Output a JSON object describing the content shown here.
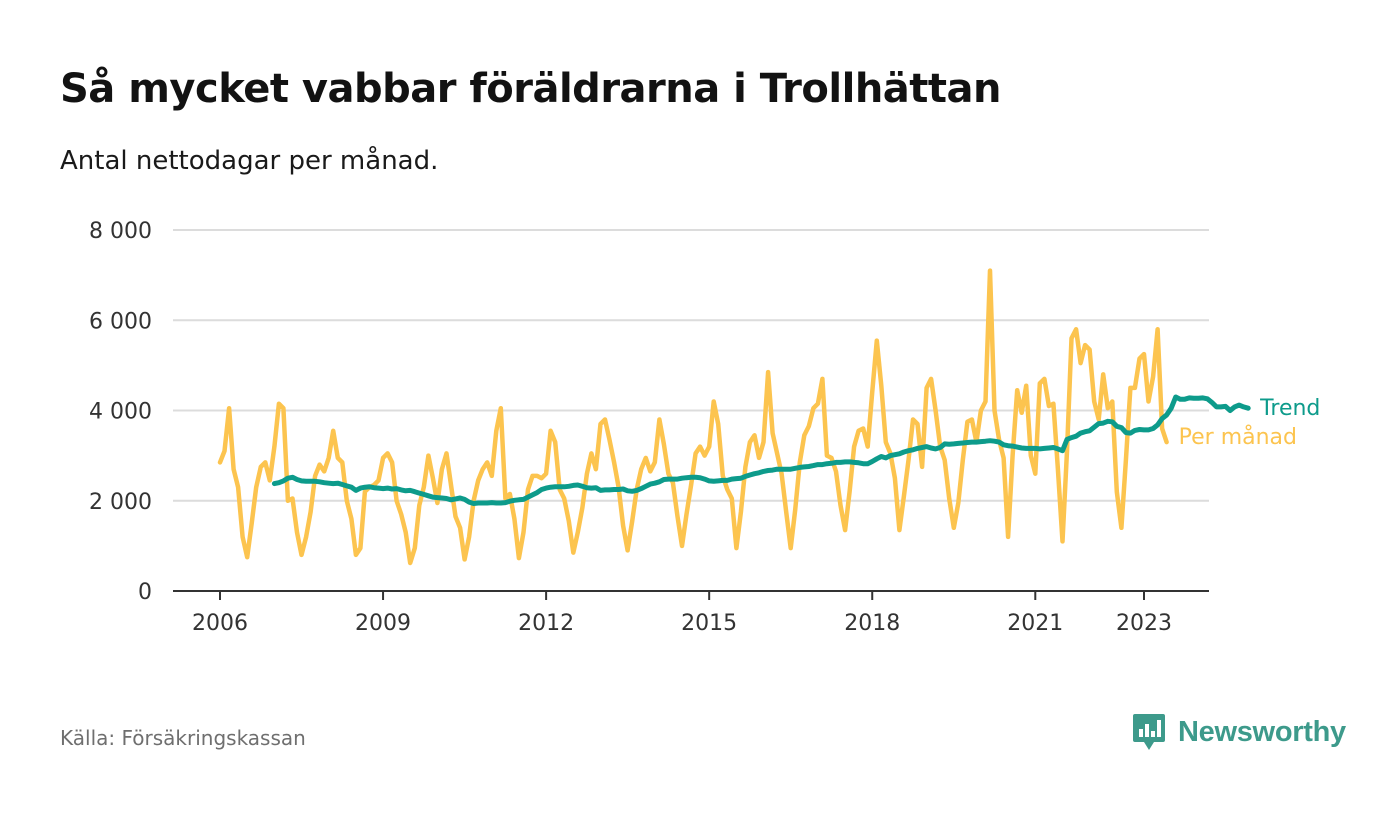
{
  "header": {
    "title": "Så mycket vabbar föräldrarna i Trollhättan",
    "subtitle": "Antal nettodagar per månad."
  },
  "footer": {
    "source": "Källa: Försäkringskassan",
    "brand": "Newsworthy",
    "brand_icon": "bar-chart-speech-icon"
  },
  "colors": {
    "monthly": "#fcc44f",
    "trend": "#0d9b8b",
    "grid": "#dcdcdc",
    "axis": "#333333",
    "brand": "#3d9a8b"
  },
  "chart_data": {
    "type": "line",
    "grid": true,
    "x_unit": "date (year-month)",
    "xlim": [
      "2005-03",
      "2024-02"
    ],
    "ylim": [
      0,
      8000
    ],
    "y_ticks": [
      0,
      2000,
      4000,
      6000,
      8000
    ],
    "y_tick_labels": [
      "0",
      "2 000",
      "4 000",
      "6 000",
      "8 000"
    ],
    "x_ticks": [
      "2006-01",
      "2009-01",
      "2012-01",
      "2015-01",
      "2018-01",
      "2021-01",
      "2023-01"
    ],
    "x_tick_labels": [
      "2006",
      "2009",
      "2012",
      "2015",
      "2018",
      "2021",
      "2023"
    ],
    "series": [
      {
        "name": "Per månad",
        "color": "#fcc44f",
        "start": "2006-01",
        "step": "month",
        "values": [
          2850,
          3100,
          4050,
          2700,
          2300,
          1200,
          750,
          1500,
          2300,
          2750,
          2850,
          2450,
          3200,
          4150,
          4050,
          2000,
          2050,
          1300,
          800,
          1200,
          1750,
          2550,
          2800,
          2650,
          2950,
          3550,
          2950,
          2850,
          2000,
          1600,
          800,
          950,
          2200,
          2300,
          2350,
          2450,
          2950,
          3050,
          2850,
          2000,
          1700,
          1300,
          620,
          950,
          1900,
          2300,
          3000,
          2500,
          1950,
          2700,
          3050,
          2350,
          1650,
          1400,
          700,
          1200,
          2000,
          2450,
          2700,
          2850,
          2550,
          3550,
          4050,
          2050,
          2150,
          1600,
          730,
          1300,
          2250,
          2550,
          2550,
          2500,
          2600,
          3550,
          3300,
          2250,
          2050,
          1550,
          850,
          1300,
          1850,
          2600,
          3050,
          2700,
          3700,
          3800,
          3350,
          2850,
          2300,
          1450,
          900,
          1550,
          2250,
          2700,
          2950,
          2650,
          2850,
          3800,
          3250,
          2600,
          2400,
          1650,
          1000,
          1700,
          2350,
          3050,
          3200,
          3000,
          3200,
          4200,
          3700,
          2550,
          2250,
          2050,
          950,
          1750,
          2750,
          3300,
          3450,
          2950,
          3300,
          4850,
          3500,
          3050,
          2600,
          1750,
          950,
          1800,
          2850,
          3450,
          3650,
          4050,
          4150,
          4700,
          3000,
          2950,
          2650,
          1900,
          1350,
          2200,
          3200,
          3550,
          3600,
          3200,
          4400,
          5550,
          4550,
          3300,
          3050,
          2500,
          1350,
          2100,
          2900,
          3800,
          3700,
          2750,
          4500,
          4700,
          4000,
          3200,
          2900,
          2050,
          1400,
          1950,
          2900,
          3750,
          3800,
          3300,
          4000,
          4200,
          7100,
          4000,
          3350,
          2950,
          1200,
          3000,
          4450,
          3950,
          4550,
          3000,
          2600,
          4600,
          4700,
          4100,
          4150,
          2700,
          1100,
          3100,
          5600,
          5800,
          5050,
          5450,
          5350,
          4200,
          3800,
          4800,
          4050,
          4200,
          2200,
          1400,
          2900,
          4500,
          4500,
          5150,
          5250,
          4200,
          4750,
          5800,
          3600,
          3300
        ]
      },
      {
        "name": "Trend",
        "color": "#0d9b8b",
        "start": "2007-01",
        "step": "month",
        "values": [
          2380,
          2400,
          2440,
          2500,
          2520,
          2470,
          2440,
          2430,
          2430,
          2430,
          2420,
          2400,
          2390,
          2380,
          2390,
          2360,
          2330,
          2300,
          2230,
          2280,
          2300,
          2310,
          2290,
          2280,
          2270,
          2280,
          2260,
          2270,
          2240,
          2220,
          2230,
          2200,
          2170,
          2140,
          2110,
          2080,
          2070,
          2060,
          2050,
          2020,
          2040,
          2060,
          2030,
          1970,
          1940,
          1950,
          1950,
          1950,
          1960,
          1950,
          1950,
          1960,
          1990,
          2010,
          2020,
          2030,
          2080,
          2130,
          2180,
          2250,
          2280,
          2300,
          2310,
          2310,
          2310,
          2320,
          2340,
          2350,
          2320,
          2290,
          2280,
          2290,
          2230,
          2240,
          2240,
          2250,
          2250,
          2260,
          2220,
          2210,
          2230,
          2270,
          2320,
          2370,
          2390,
          2420,
          2470,
          2480,
          2480,
          2480,
          2500,
          2510,
          2520,
          2520,
          2510,
          2480,
          2440,
          2430,
          2440,
          2450,
          2450,
          2480,
          2490,
          2500,
          2540,
          2570,
          2600,
          2620,
          2650,
          2670,
          2680,
          2700,
          2700,
          2700,
          2700,
          2720,
          2740,
          2750,
          2760,
          2780,
          2800,
          2800,
          2820,
          2830,
          2850,
          2850,
          2860,
          2860,
          2850,
          2840,
          2820,
          2820,
          2870,
          2930,
          2980,
          2950,
          3000,
          3020,
          3040,
          3080,
          3110,
          3130,
          3160,
          3180,
          3200,
          3170,
          3150,
          3180,
          3260,
          3250,
          3260,
          3270,
          3280,
          3290,
          3300,
          3300,
          3310,
          3320,
          3330,
          3320,
          3300,
          3240,
          3220,
          3210,
          3190,
          3170,
          3160,
          3160,
          3160,
          3150,
          3160,
          3170,
          3180,
          3150,
          3110,
          3360,
          3400,
          3430,
          3500,
          3530,
          3550,
          3630,
          3710,
          3720,
          3760,
          3750,
          3650,
          3620,
          3510,
          3500,
          3560,
          3580,
          3570,
          3570,
          3600,
          3680,
          3820,
          3900,
          4050,
          4300,
          4250,
          4250,
          4280,
          4270,
          4270,
          4280,
          4260,
          4180,
          4080,
          4080,
          4090,
          4000,
          4080,
          4120,
          4080,
          4050
        ]
      }
    ]
  }
}
